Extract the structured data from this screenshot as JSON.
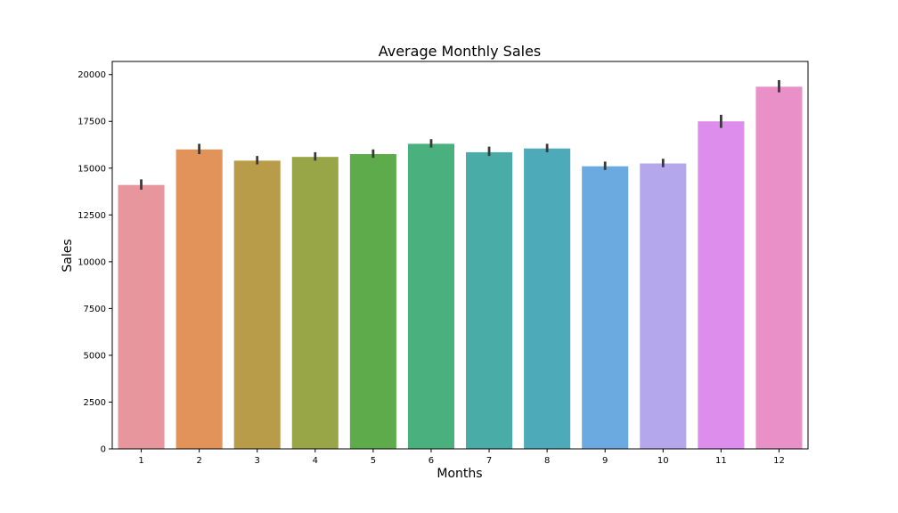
{
  "chart_data": {
    "type": "bar",
    "title": "Average Monthly Sales",
    "xlabel": "Months",
    "ylabel": "Sales",
    "categories": [
      "1",
      "2",
      "3",
      "4",
      "5",
      "6",
      "7",
      "8",
      "9",
      "10",
      "11",
      "12"
    ],
    "values": [
      14100,
      16000,
      15400,
      15600,
      15750,
      16300,
      15850,
      16050,
      15100,
      15250,
      17500,
      19350
    ],
    "error_low": [
      13850,
      15750,
      15200,
      15400,
      15550,
      16100,
      15650,
      15850,
      14900,
      15050,
      17150,
      19050
    ],
    "error_high": [
      14400,
      16300,
      15650,
      15850,
      16000,
      16550,
      16150,
      16300,
      15350,
      15500,
      17850,
      19700
    ],
    "ylim": [
      0,
      20700
    ],
    "yticks": [
      0,
      2500,
      5000,
      7500,
      10000,
      12500,
      15000,
      17500,
      20000
    ],
    "grid": false,
    "colors": [
      "#e8969e",
      "#e1935a",
      "#b99c4a",
      "#98a648",
      "#5dab4b",
      "#4ab07e",
      "#4aaca7",
      "#4daab9",
      "#6aaae0",
      "#b5a7ec",
      "#dd8deb",
      "#e890c7"
    ],
    "error_color": "#3a3a3a"
  }
}
